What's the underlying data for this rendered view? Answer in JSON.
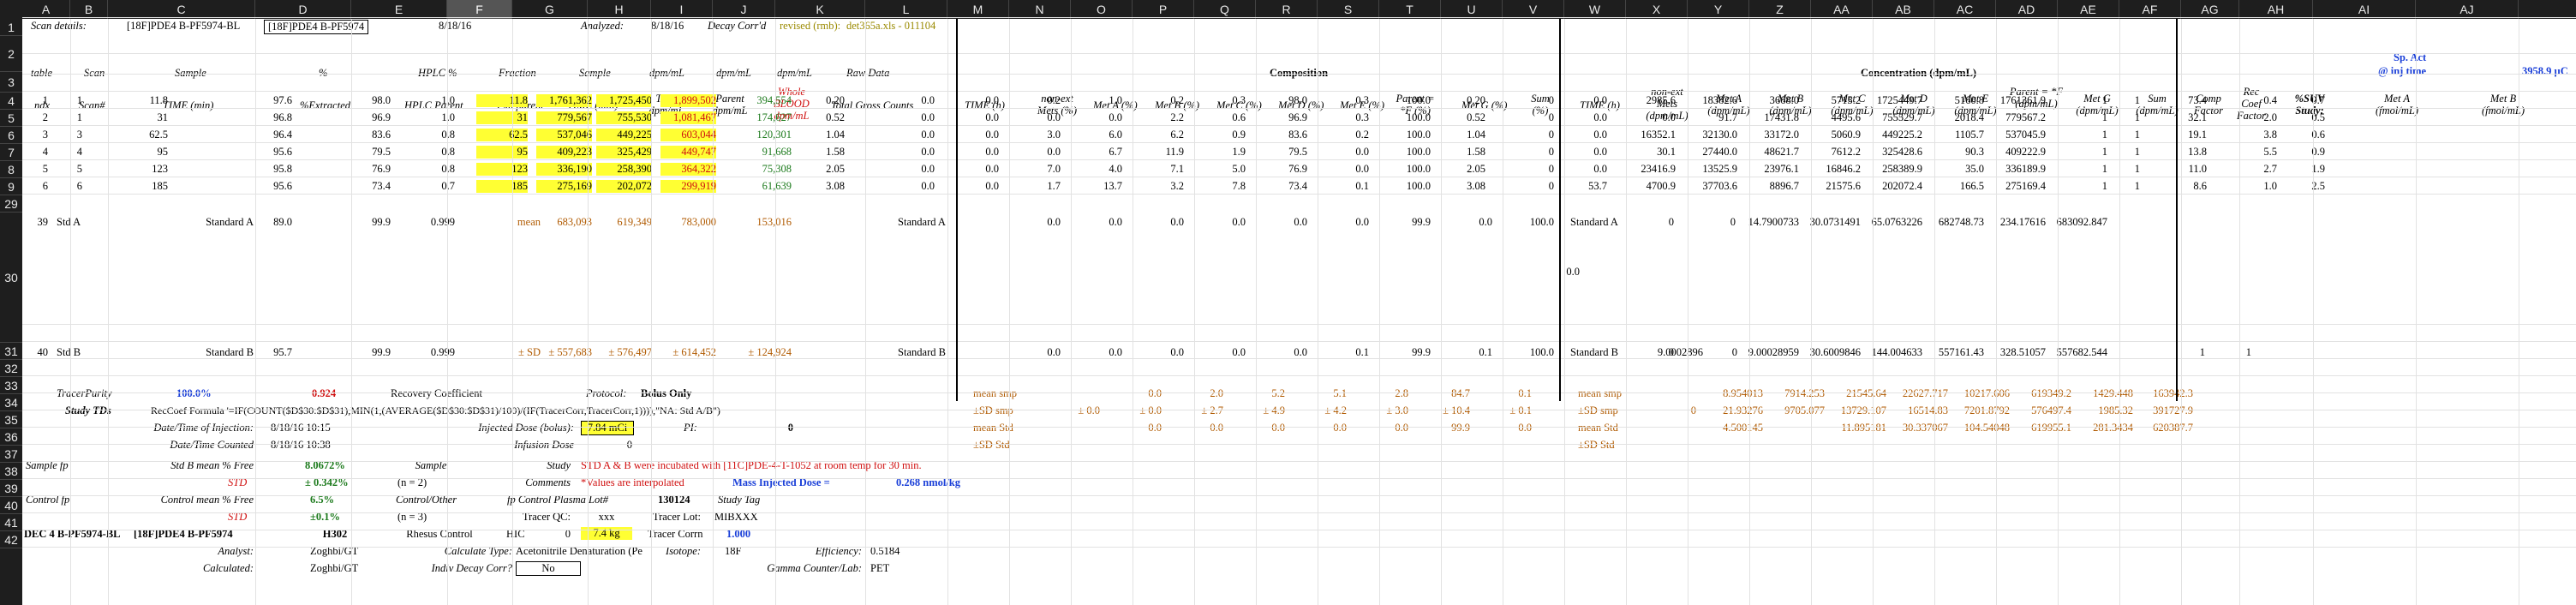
{
  "column_headers": [
    "A",
    "B",
    "C",
    "D",
    "E",
    "F",
    "G",
    "H",
    "I",
    "J",
    "K",
    "L",
    "M",
    "N",
    "O",
    "P",
    "Q",
    "R",
    "S",
    "T",
    "U",
    "V",
    "W",
    "X",
    "Y",
    "Z",
    "AA",
    "AB",
    "AC",
    "AD",
    "AE",
    "AF",
    "AG",
    "AH",
    "AI",
    "AJ"
  ],
  "selected_column": "F",
  "row_headers": [
    "1",
    "2",
    "3",
    "4",
    "5",
    "6",
    "7",
    "8",
    "9",
    "29",
    "30",
    "31",
    "32",
    "33",
    "34",
    "35",
    "36",
    "37",
    "38",
    "39",
    "40",
    "41",
    "42"
  ],
  "row1": {
    "scan_details_label": "Scan details:",
    "scan_a": "[18F]PDE4 B-PF5974-BL",
    "scan_b": "[18F]PDE4 B-PF5974",
    "date": "8/18/16",
    "analyzed_label": "Analyzed:",
    "analyzed_date": "8/18/16",
    "decay_label": "Decay Corr'd",
    "revised": "revised (rmb):",
    "file": "det365a.xls - 011104"
  },
  "row2": {
    "table": "table",
    "scan": "Scan",
    "sample": "Sample",
    "pct": "%",
    "hplc": "HPLC %",
    "fraction": "Fraction",
    "sample2": "Sample",
    "dpm1": "dpm/mL",
    "dpm2": "dpm/mL",
    "dpm3": "dpm/mL",
    "raw": "Raw Data",
    "composition": "Composition",
    "concentration": "Concentration (dpm/mL)",
    "sp_act": "Sp. Act",
    "at_inj": "@ inj time",
    "sp_val": "3958.9 µC"
  },
  "row3": {
    "ndx": "ndx",
    "scan": "Scan#",
    "time": "TIME (min)",
    "extracted": "%Extracted",
    "hplc_parent": "HPLC Parent",
    "fxn": "Fxn parent",
    "time2": "TIME (min)",
    "total": "Total dpm/mL",
    "parent": "Parent dpm/mL",
    "whole_blood": "Whole BLOOD dpm/mL",
    "gross": "Total Gross Counts",
    "time_h": "TIME (h)",
    "nonext": "non-ext Mets (%)",
    "meta": "Met A (%)",
    "metb": "Met B (%)",
    "metc": "Met C (%)",
    "metd": "Met D (%)",
    "mete": "Met E (%)",
    "parent_f": "Parent = *F (%)",
    "metg": "Met G (%)",
    "sum": "Sum (%)",
    "time_h2": "TIME (h)",
    "nonext2": "non-ext Mets (dpm/mL)",
    "meta2": "Met A (dpm/mL)",
    "metb2": "Met B (dpm/mL)",
    "metc2": "Met C (dpm/mL)",
    "metd2": "Met D (dpm/mL)",
    "mete2": "Met E (dpm/mL)",
    "parent2": "Parent = *F (dpm/mL)",
    "metg2": "Met G (dpm/mL)",
    "sum2": "Sum (dpm/mL)",
    "comp": "Comp Factor",
    "rec": "Rec Coef Factor",
    "suv": "%SUV Study:",
    "meta_f": "Met A (fmol/mL)",
    "metb_f": "Met B (fmol/mL)"
  },
  "data_rows": [
    [
      "1",
      "1",
      "11.8",
      "97.6",
      "98.0",
      "1.0",
      "11.8",
      "1,761,362",
      "1,725,450",
      "1,899,502",
      "394,554",
      "0.20",
      "0.0",
      "0.0",
      "0.2",
      "1.0",
      "0.2",
      "0.3",
      "98.0",
      "0.3",
      "100.0",
      "0.20",
      "0",
      "0.0",
      "2985.6",
      "18382.6",
      "3668.0",
      "5715.2",
      "1725449.7",
      "5160.8",
      "1761361.9",
      "1",
      "1",
      "73.4",
      "0.4",
      "0.7"
    ],
    [
      "2",
      "1",
      "31",
      "96.8",
      "96.9",
      "1.0",
      "31",
      "779,567",
      "755,530",
      "1,081,467",
      "174,627",
      "0.52",
      "0.0",
      "0.0",
      "0.0",
      "0.0",
      "2.2",
      "0.6",
      "96.9",
      "0.3",
      "100.0",
      "0.52",
      "0",
      "0.0",
      "0.0",
      "91.7",
      "17431.8",
      "4495.6",
      "755529.7",
      "2018.4",
      "779567.2",
      "1",
      "1",
      "32.1",
      "2.0",
      "0.5"
    ],
    [
      "3",
      "3",
      "62.5",
      "96.4",
      "83.6",
      "0.8",
      "62.5",
      "537,046",
      "449,225",
      "603,044",
      "120,301",
      "1.04",
      "0.0",
      "0.0",
      "3.0",
      "6.0",
      "6.2",
      "0.9",
      "83.6",
      "0.2",
      "100.0",
      "1.04",
      "0",
      "0.0",
      "16352.1",
      "32130.0",
      "33172.0",
      "5060.9",
      "449225.2",
      "1105.7",
      "537045.9",
      "1",
      "1",
      "19.1",
      "3.8",
      "0.6"
    ],
    [
      "4",
      "4",
      "95",
      "95.6",
      "79.5",
      "0.8",
      "95",
      "409,223",
      "325,429",
      "449,747",
      "91,668",
      "1.58",
      "0.0",
      "0.0",
      "0.0",
      "6.7",
      "11.9",
      "1.9",
      "79.5",
      "0.0",
      "100.0",
      "1.58",
      "0",
      "0.0",
      "30.1",
      "27440.0",
      "48621.7",
      "7612.2",
      "325428.6",
      "90.3",
      "409222.9",
      "1",
      "1",
      "13.8",
      "5.5",
      "0.9"
    ],
    [
      "5",
      "5",
      "123",
      "95.8",
      "76.9",
      "0.8",
      "123",
      "336,190",
      "258,390",
      "364,322",
      "75,308",
      "2.05",
      "0.0",
      "0.0",
      "7.0",
      "4.0",
      "7.1",
      "5.0",
      "76.9",
      "0.0",
      "100.0",
      "2.05",
      "0",
      "0.0",
      "23416.9",
      "13525.9",
      "23976.1",
      "16846.2",
      "258389.9",
      "35.0",
      "336189.9",
      "1",
      "1",
      "11.0",
      "2.7",
      "1.9"
    ],
    [
      "6",
      "6",
      "185",
      "95.6",
      "73.4",
      "0.7",
      "185",
      "275,169",
      "202,072",
      "299,919",
      "61,639",
      "3.08",
      "0.0",
      "0.0",
      "1.7",
      "13.7",
      "3.2",
      "7.8",
      "73.4",
      "0.1",
      "100.0",
      "3.08",
      "0",
      "53.7",
      "4700.9",
      "37703.6",
      "8896.7",
      "21575.6",
      "202072.4",
      "166.5",
      "275169.4",
      "1",
      "1",
      "8.6",
      "1.0",
      "2.5"
    ]
  ],
  "row29": {
    "u": "0.0"
  },
  "row30": [
    "39",
    "Std A",
    "Standard A",
    "89.0",
    "99.9",
    "0.999",
    "mean",
    "683,093",
    "619,349",
    "783,000",
    "153,016",
    "Standard A",
    "0.0",
    "0.0",
    "0.0",
    "0.0",
    "0.0",
    "0.0",
    "99.9",
    "0.0",
    "100.0",
    "Standard A",
    "0",
    "0",
    "14.7900733",
    "30.0731491",
    "65.0763226",
    "682748.73",
    "234.17616",
    "683092.847"
  ],
  "row31": [
    "40",
    "Std B",
    "Standard B",
    "95.7",
    "99.9",
    "0.999",
    "± SD",
    "± 557,683",
    "± 576,497",
    "± 614,452",
    "± 124,924",
    "Standard B",
    "0.0",
    "0.0",
    "0.0",
    "0.0",
    "0.0",
    "0.1",
    "99.9",
    "0.1",
    "100.0",
    "Standard B",
    "0",
    "9.0002896",
    "0",
    "9.00028959",
    "30.6009846",
    "144.004633",
    "557161.43",
    "328.51057",
    "557682.544",
    "1",
    "1"
  ],
  "row32": {
    "tracer_purity": "TracerPurity",
    "purity_val": "100.0%",
    "d": "0.924",
    "recovery": "Recovery Coefficient",
    "protocol": "Protocol:",
    "protocol_val": "Bolus Only",
    "mean_smp": "mean smp",
    "o": "0.0",
    "p": "2.0",
    "q": "5.2",
    "r": "5.1",
    "s": "2.8",
    "t": "84.7",
    "u": "0.1",
    "mean_smp2": "mean smp",
    "x": "8.954013",
    "y": "7914.253",
    "z": "21545.64",
    "aa": "22627.717",
    "ab": "10217.606",
    "ac": "619349.2",
    "ad": "1429.448",
    "ae": "163942.3"
  },
  "row33": {
    "study_tds": "Study TDs",
    "formula": "RecCoef Formula '=IF(COUNT($D$30:$D$31),MIN(1,(AVERAGE($D$30:$D$31)/100)/(IF(TracerCorr,TracerCorr,1)))),\"NA: Std A/B\")",
    "sd_smp": "±SD smp",
    "n": "± 0.0",
    "o": "± 0.0",
    "p": "± 2.7",
    "q": "± 4.9",
    "r": "± 4.2",
    "s": "± 3.0",
    "t": "± 10.4",
    "u": "± 0.1",
    "sd_smp2": "±SD smp",
    "w": "0",
    "x": "21.93276",
    "y": "9705.077",
    "z": "13729.107",
    "aa": "16514.83",
    "ab": "7201.8792",
    "ac": "576497.4",
    "ad": "1985.32",
    "ae": "391727.9"
  },
  "row34": {
    "date_inj": "Date/Time of Injection:",
    "date_inj_val": "8/18/16 10:15",
    "inj_dose": "Injected Dose (bolus):",
    "inj_val": "7.84 mCi",
    "pi": "PI:",
    "pi_val": "0",
    "mean_std": "mean Std",
    "o": "0.0",
    "p": "0.0",
    "q": "0.0",
    "r": "0.0",
    "s": "0.0",
    "t": "99.9",
    "u": "0.0",
    "mean_std2": "mean Std",
    "x": "4.500145",
    "z": "11.895181",
    "aa": "30.337067",
    "ab": "104.54048",
    "ac": "619955.1",
    "ad": "281.3434",
    "ae": "620387.7"
  },
  "row35": {
    "date_count": "Date/Time Counted",
    "date_count_val": "8/18/16 10:38",
    "inf_dose": "Infusion Dose",
    "inf_val": "0",
    "sd_std": "±SD Std",
    "sd_std2": "±SD Std"
  },
  "row36": {
    "sample_fp": "Sample fp",
    "std_b_mean": "Std B mean % Free",
    "std_b_val": "8.0672%",
    "sample": "Sample",
    "study": "Study",
    "note": "STD A & B were incubated with [11C]PDE-4-T-1052 at room temp for 30 min."
  },
  "row37": {
    "std": "STD",
    "std_val": "± 0.342%",
    "n2": "(n = 2)",
    "comments": "Comments",
    "interp": "*Values are interpolated",
    "mass": "Mass Injected Dose =",
    "mass_val": "0.268 nmol/kg"
  },
  "row38": {
    "control_fp": "Control fp",
    "ctrl_mean": "Control mean % Free",
    "ctrl_val": "6.5%",
    "ctrl_other": "Control/Other",
    "fp_lot": "fp Control Plasma Lot#",
    "lot_val": "130124",
    "study_tag": "Study Tag"
  },
  "row39": {
    "std": "STD",
    "std_val": "±0.1%",
    "n3": "(n = 3)",
    "tracer_qc": "Tracer QC:",
    "qc_val": "xxx",
    "tracer_lot": "Tracer Lot:",
    "lot_val": "MIBXXX"
  },
  "row40": {
    "a": "DEC 4 B-PF5974-BL",
    "c": "[18F]PDE4 B-PF5974",
    "d": "H302",
    "e": "Rhesus Control",
    "hic": "HIC",
    "hic_val": "0",
    "kg": "7.4 kg",
    "tracer_corr": "Tracer Corrn",
    "tc_val": "1.000"
  },
  "row41": {
    "analyst": "Analyst:",
    "analyst_val": "Zoghbi/GT",
    "calc_type": "Calculate Type:",
    "calc_val": "Acetonitrile Denaturation (Pe",
    "isotope": "Isotope:",
    "iso_val": "18F",
    "eff": "Efficiency:",
    "eff_val": "0.5184"
  },
  "row42": {
    "calculated": "Calculated:",
    "calc_who": "Zoghbi/GT",
    "indiv": "Indiv Decay Corr?",
    "indiv_val": "No",
    "gamma": "Gamma Counter/Lab:",
    "gamma_val": "PET"
  }
}
